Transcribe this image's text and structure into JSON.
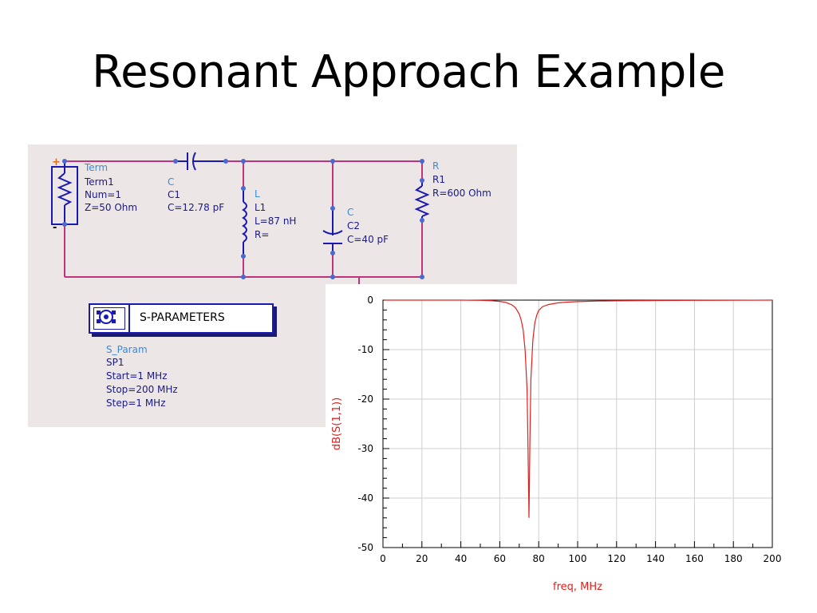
{
  "slide": {
    "title": "Resonant Approach Example"
  },
  "schematic": {
    "term": {
      "type": "Term",
      "name": "Term1",
      "num": "Num=1",
      "z": "Z=50 Ohm"
    },
    "c1": {
      "type": "C",
      "name": "C1",
      "value": "C=12.78 pF"
    },
    "l1": {
      "type": "L",
      "name": "L1",
      "value": "L=87 nH",
      "r": "R="
    },
    "c2": {
      "type": "C",
      "name": "C2",
      "value": "C=40 pF"
    },
    "r1": {
      "type": "R",
      "name": "R1",
      "value": "R=600 Ohm"
    },
    "sparams": {
      "title": "S-PARAMETERS",
      "type": "S_Param",
      "name": "SP1",
      "start": "Start=1 MHz",
      "stop": "Stop=200 MHz",
      "step": "Step=1 MHz"
    },
    "colors": {
      "wire": "#c0337a",
      "component": "#1a1ab0",
      "label": "#1a1a8a",
      "type_label": "#3a8ad8"
    }
  },
  "chart_data": {
    "type": "line",
    "title": "",
    "xlabel": "freq, MHz",
    "ylabel": "dB(S(1,1))",
    "xlim": [
      0,
      200
    ],
    "ylim": [
      -50,
      0
    ],
    "xticks": [
      0,
      20,
      40,
      60,
      80,
      100,
      120,
      140,
      160,
      180,
      200
    ],
    "yticks": [
      0,
      -10,
      -20,
      -30,
      -40,
      -50
    ],
    "grid": true,
    "series": [
      {
        "color": "#e02020",
        "x": [
          1,
          20,
          40,
          50,
          55,
          60,
          63,
          66,
          68,
          70,
          71,
          72,
          73,
          74,
          74.5,
          75,
          75.5,
          76,
          77,
          78,
          79,
          80,
          82,
          85,
          90,
          95,
          100,
          110,
          120,
          140,
          160,
          180,
          200
        ],
        "y": [
          0,
          0,
          0,
          -0.05,
          -0.1,
          -0.25,
          -0.45,
          -0.9,
          -1.5,
          -2.8,
          -4,
          -6,
          -10,
          -18,
          -30,
          -44,
          -28,
          -16,
          -8,
          -4.6,
          -3,
          -2.1,
          -1.3,
          -0.9,
          -0.55,
          -0.4,
          -0.3,
          -0.2,
          -0.15,
          -0.08,
          -0.05,
          -0.03,
          0
        ]
      }
    ]
  }
}
